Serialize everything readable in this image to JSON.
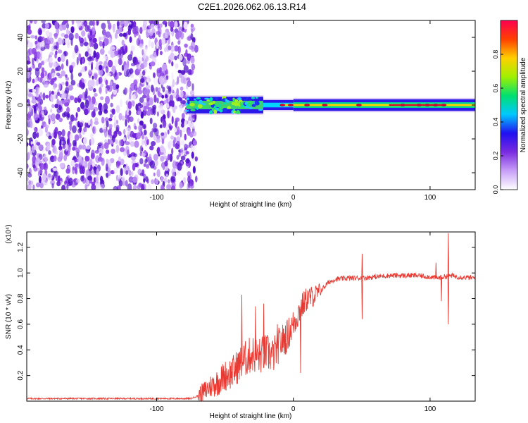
{
  "figure": {
    "title": "C2E1.2026.062.06.13.R14"
  },
  "colors": {
    "signal": "#e83a32",
    "axis": "#000000",
    "noise": "#7a2be0",
    "carrier": "#d4002a"
  },
  "chart_data": [
    {
      "type": "heatmap",
      "name": "spectrogram",
      "xlabel": "Height of straight line (km)",
      "ylabel": "Frequency (Hz)",
      "xlim": [
        -195,
        133
      ],
      "ylim": [
        -50,
        50
      ],
      "xticks": [
        -100,
        0,
        100
      ],
      "yticks": [
        -40,
        -20,
        0,
        20,
        40
      ],
      "xtick_labels": [
        "-100",
        "0",
        "100"
      ],
      "ytick_labels": [
        "-40",
        "-20",
        "0",
        "20",
        "40"
      ],
      "noise_region_km": [
        -195,
        -73
      ],
      "carrier": {
        "freq_hz": 0,
        "segments": [
          {
            "x0": -78,
            "x1": -22,
            "half_width_hz": 4.5,
            "color": "#40d070"
          },
          {
            "x0": -22,
            "x1": 0,
            "half_width_hz": 2.5,
            "color": "#00d4ff"
          },
          {
            "x0": 0,
            "x1": 133,
            "half_width_hz": 3.0,
            "color": "#00d890"
          }
        ],
        "peaks_km": [
          -8,
          -2,
          10,
          23,
          48,
          80,
          92,
          98,
          104,
          110
        ]
      },
      "colorbar": {
        "label": "Normalized spectral amplitude",
        "range": [
          0,
          1
        ],
        "ticks": [
          0.0,
          0.2,
          0.4,
          0.6,
          0.8
        ],
        "tick_labels": [
          "0.0",
          "0.2",
          "0.4",
          "0.6",
          "0.8"
        ],
        "stops": [
          "#ffffff",
          "#c8a0f8",
          "#7a2be0",
          "#2010f0",
          "#00c8ff",
          "#00e070",
          "#a0f000",
          "#ffd000",
          "#ff4000",
          "#ff0050"
        ]
      }
    },
    {
      "type": "line",
      "name": "snr",
      "xlabel": "Height of straight line (km)",
      "ylabel": "SNR (10 * v/v)",
      "multiplier": "(x10⁴)",
      "xlim": [
        -195,
        133
      ],
      "ylim": [
        0,
        1.32
      ],
      "xticks": [
        -100,
        0,
        100
      ],
      "yticks": [
        0.2,
        0.4,
        0.6,
        0.8,
        1.0,
        1.2
      ],
      "xtick_labels": [
        "-100",
        "0",
        "100"
      ],
      "ytick_labels": [
        "0.2",
        "0.4",
        "0.6",
        "0.8",
        "1.0",
        "1.2"
      ],
      "series": [
        {
          "name": "SNR",
          "x": [
            -195,
            -120,
            -75,
            -68,
            -60,
            -55,
            -50,
            -45,
            -40,
            -35,
            -30,
            -25,
            -20,
            -15,
            -10,
            -5,
            0,
            5,
            10,
            15,
            20,
            25,
            30,
            40,
            50,
            60,
            70,
            80,
            90,
            100,
            105,
            110,
            115,
            120,
            133
          ],
          "values": [
            0.02,
            0.02,
            0.02,
            0.05,
            0.12,
            0.15,
            0.2,
            0.22,
            0.28,
            0.33,
            0.37,
            0.35,
            0.38,
            0.35,
            0.45,
            0.5,
            0.6,
            0.72,
            0.8,
            0.82,
            0.86,
            0.92,
            0.95,
            0.96,
            0.96,
            0.97,
            0.98,
            0.98,
            0.98,
            0.97,
            0.96,
            0.97,
            0.98,
            0.97,
            0.96
          ],
          "spikes": [
            [
              -38,
              0.83
            ],
            [
              -28,
              0.74
            ],
            [
              -22,
              0.76
            ],
            [
              -12,
              0.6
            ],
            [
              5,
              0.22
            ],
            [
              50,
              1.15
            ],
            [
              50,
              0.64
            ],
            [
              104,
              1.08
            ],
            [
              108,
              0.78
            ],
            [
              113,
              1.31
            ],
            [
              113,
              0.6
            ]
          ]
        }
      ]
    }
  ]
}
